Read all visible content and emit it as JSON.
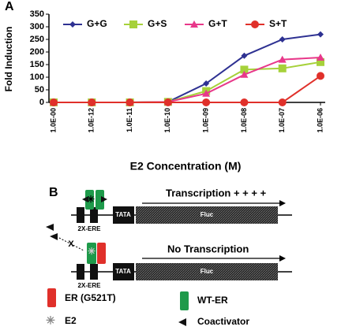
{
  "chart_data": {
    "type": "line",
    "panel_label": "A",
    "ylabel": "Fold Induction",
    "xlabel": "E2 Concentration (M)",
    "categories": [
      "1.0E-00",
      "1.0E-12",
      "1.0E-11",
      "1.0E-10",
      "1.0E-09",
      "1.0E-08",
      "1.0E-07",
      "1.0E-06"
    ],
    "series": [
      {
        "name": "G+G",
        "color": "#2e3192",
        "marker": "diamond",
        "values": [
          0,
          0,
          0,
          2,
          75,
          185,
          250,
          270
        ]
      },
      {
        "name": "G+S",
        "color": "#a6d13a",
        "marker": "square",
        "values": [
          0,
          0,
          0,
          2,
          45,
          130,
          135,
          160
        ]
      },
      {
        "name": "G+T",
        "color": "#e8388a",
        "marker": "triangle",
        "values": [
          0,
          0,
          0,
          2,
          35,
          110,
          170,
          178
        ]
      },
      {
        "name": "S+T",
        "color": "#e0302a",
        "marker": "circle",
        "values": [
          0,
          0,
          0,
          0,
          0,
          0,
          0,
          105
        ]
      }
    ],
    "ylim": [
      0,
      350
    ],
    "yticks": [
      0,
      50,
      100,
      150,
      200,
      250,
      300,
      350
    ],
    "legend": "top"
  },
  "diagram": {
    "panel_label": "B",
    "row1": {
      "text": "Transcription + + + +",
      "ere": "2X-ERE",
      "tata": "TATA",
      "reporter": "Fluc"
    },
    "row2": {
      "text": "No Transcription",
      "ere": "2X-ERE",
      "tata": "TATA",
      "reporter": "Fluc",
      "block": "X"
    },
    "legend": {
      "mutant": "ER (G521T)",
      "wildtype": "WT-ER",
      "ligand": "E2",
      "coactivator": "Coactivator"
    }
  }
}
